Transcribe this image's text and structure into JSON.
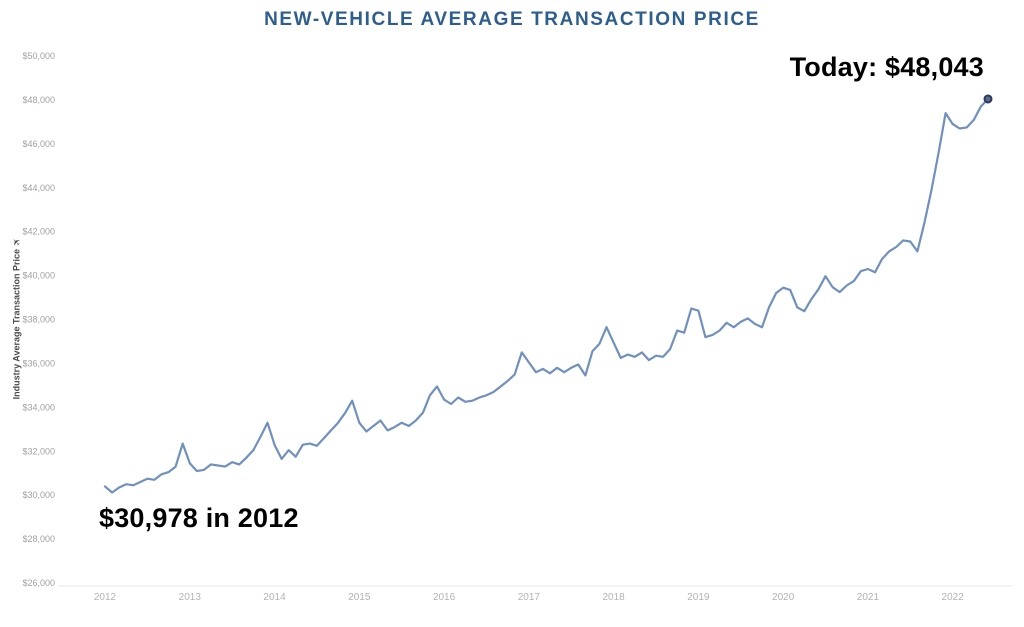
{
  "title": "NEW-VEHICLE AVERAGE TRANSACTION PRICE",
  "annotations": {
    "today": "Today: $48,043",
    "start": "$30,978 in 2012"
  },
  "y_axis": {
    "label": "Industry Average Transaction Price",
    "sort_icon_glyph": "✈"
  },
  "colors": {
    "title": "#2E5E8E",
    "line": "#7090BE",
    "end_dot_fill": "#5A6B8C",
    "end_dot_stroke": "#2B3A5E",
    "y_tick_label": "#A0A0A0",
    "x_tick_label": "#B2B2B2",
    "axis_line": "#E8E8E8",
    "annotation_text": "#000000",
    "y_axis_title": "#4A4A4A"
  },
  "chart_data": {
    "type": "line",
    "title": "NEW-VEHICLE AVERAGE TRANSACTION PRICE",
    "xlabel": "",
    "ylabel": "Industry Average Transaction Price",
    "ylim": [
      26000,
      50000
    ],
    "y_tick_step": 2000,
    "y_tick_labels": [
      "$26,000",
      "$28,000",
      "$30,000",
      "$32,000",
      "$34,000",
      "$36,000",
      "$38,000",
      "$40,000",
      "$42,000",
      "$44,000",
      "$46,000",
      "$48,000",
      "$50,000"
    ],
    "x_tick_labels": [
      "2012",
      "2013",
      "2014",
      "2015",
      "2016",
      "2017",
      "2018",
      "2019",
      "2020",
      "2021",
      "2022"
    ],
    "x_range": [
      "Jan 2012",
      "Jun 2022"
    ],
    "grid": false,
    "legend_position": "none",
    "marker_on_last_point": true,
    "annotations": [
      {
        "text": "Today: $48,043",
        "x": "2022-06",
        "y": 48043
      },
      {
        "text": "$30,978 in 2012",
        "x": "2012",
        "y": 30978
      }
    ],
    "series": [
      {
        "name": "Industry Average Transaction Price",
        "frequency": "monthly",
        "start": "2012-01",
        "end": "2022-06",
        "values": [
          30400,
          30120,
          30350,
          30500,
          30450,
          30600,
          30750,
          30700,
          30950,
          31050,
          31300,
          32350,
          31450,
          31100,
          31150,
          31400,
          31350,
          31300,
          31500,
          31400,
          31700,
          32050,
          32650,
          33300,
          32300,
          31650,
          32050,
          31750,
          32300,
          32350,
          32250,
          32600,
          32950,
          33300,
          33750,
          34300,
          33300,
          32900,
          33150,
          33400,
          32950,
          33100,
          33300,
          33150,
          33400,
          33750,
          34550,
          34950,
          34350,
          34150,
          34450,
          34250,
          34300,
          34450,
          34550,
          34700,
          34950,
          35200,
          35500,
          36500,
          36050,
          35600,
          35750,
          35550,
          35800,
          35600,
          35800,
          35950,
          35450,
          36550,
          36900,
          37650,
          36950,
          36250,
          36400,
          36300,
          36500,
          36150,
          36350,
          36300,
          36650,
          37500,
          37400,
          38500,
          38400,
          37200,
          37300,
          37500,
          37850,
          37650,
          37900,
          38050,
          37800,
          37650,
          38550,
          39200,
          39450,
          39350,
          38550,
          38380,
          38930,
          39380,
          39970,
          39470,
          39250,
          39550,
          39750,
          40200,
          40300,
          40150,
          40750,
          41100,
          41300,
          41600,
          41550,
          41100,
          42400,
          43900,
          45600,
          47400,
          46900,
          46700,
          46750,
          47100,
          47700,
          48043
        ]
      }
    ]
  }
}
